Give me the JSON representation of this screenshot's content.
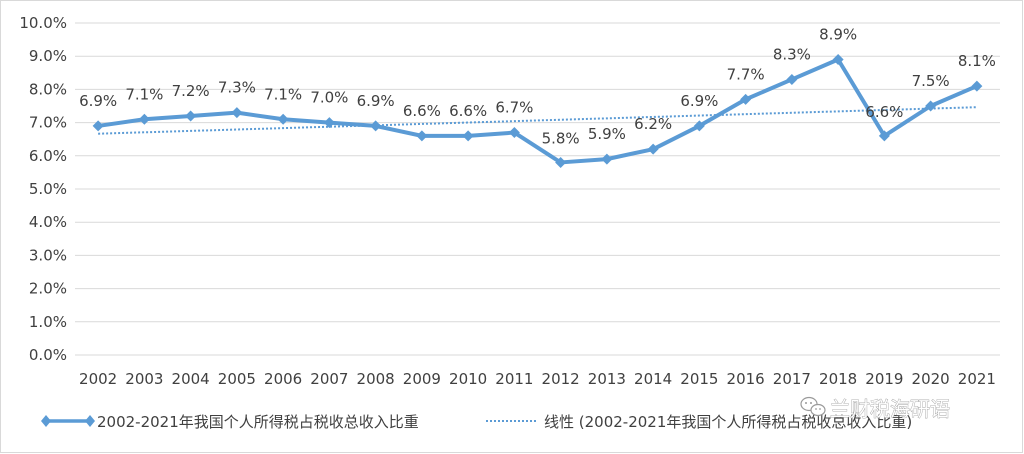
{
  "chart_data": {
    "type": "line",
    "categories": [
      "2002",
      "2003",
      "2004",
      "2005",
      "2006",
      "2007",
      "2008",
      "2009",
      "2010",
      "2011",
      "2012",
      "2013",
      "2014",
      "2015",
      "2016",
      "2017",
      "2018",
      "2019",
      "2020",
      "2021"
    ],
    "series": [
      {
        "name": "2002-2021年我国个人所得税占税收总收入比重",
        "values": [
          6.9,
          7.1,
          7.2,
          7.3,
          7.1,
          7.0,
          6.9,
          6.6,
          6.6,
          6.7,
          5.8,
          5.9,
          6.2,
          6.9,
          7.7,
          8.3,
          8.9,
          6.6,
          7.5,
          8.1
        ],
        "data_labels": [
          "6.9%",
          "7.1%",
          "7.2%",
          "7.3%",
          "7.1%",
          "7.0%",
          "6.9%",
          "6.6%",
          "6.6%",
          "6.7%",
          "5.8%",
          "5.9%",
          "6.2%",
          "6.9%",
          "7.7%",
          "8.3%",
          "8.9%",
          "6.6%",
          "7.5%",
          "8.1%"
        ],
        "color": "#5b9bd5",
        "marker": "diamond"
      }
    ],
    "trendline": {
      "name": "线性 (2002-2021年我国个人所得税占税收总收入比重)",
      "type": "linear",
      "style": "dotted",
      "color": "#5b9bd5"
    },
    "y_ticks": [
      "0.0%",
      "1.0%",
      "2.0%",
      "3.0%",
      "4.0%",
      "5.0%",
      "6.0%",
      "7.0%",
      "8.0%",
      "9.0%",
      "10.0%"
    ],
    "ylim": [
      0,
      10
    ],
    "grid": true,
    "legend_position": "bottom",
    "title": "",
    "xlabel": "",
    "ylabel": ""
  },
  "watermark": {
    "text": "兰财税海研语",
    "icon": "wechat-icon"
  }
}
